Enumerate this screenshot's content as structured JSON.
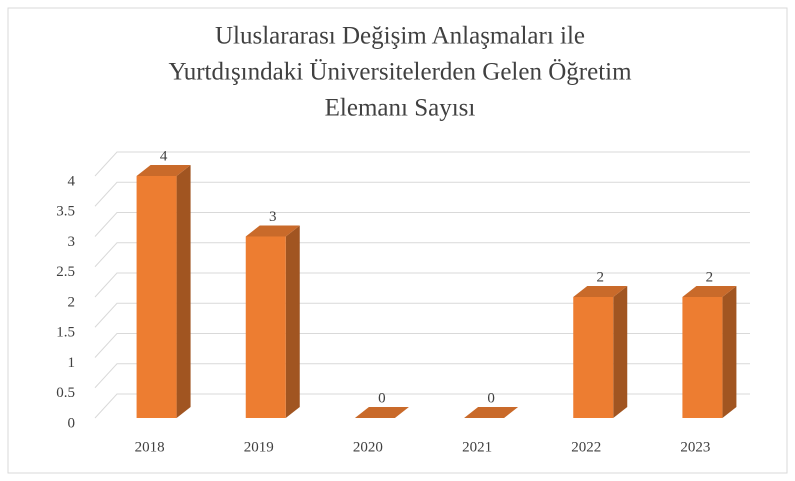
{
  "chart_data": {
    "type": "bar3d",
    "title": [
      "Uluslararası Değişim Anlaşmaları ile",
      "Yurtdışındaki Üniversitelerden Gelen Öğretim",
      "Elemanı Sayısı"
    ],
    "categories": [
      "2018",
      "2019",
      "2020",
      "2021",
      "2022",
      "2023"
    ],
    "values": [
      4,
      3,
      0,
      0,
      2,
      2
    ],
    "color": "#ed7d31",
    "ylim": [
      0,
      4
    ],
    "yticks": [
      0,
      0.5,
      1,
      1.5,
      2,
      2.5,
      3,
      3.5,
      4
    ],
    "grid": true
  }
}
